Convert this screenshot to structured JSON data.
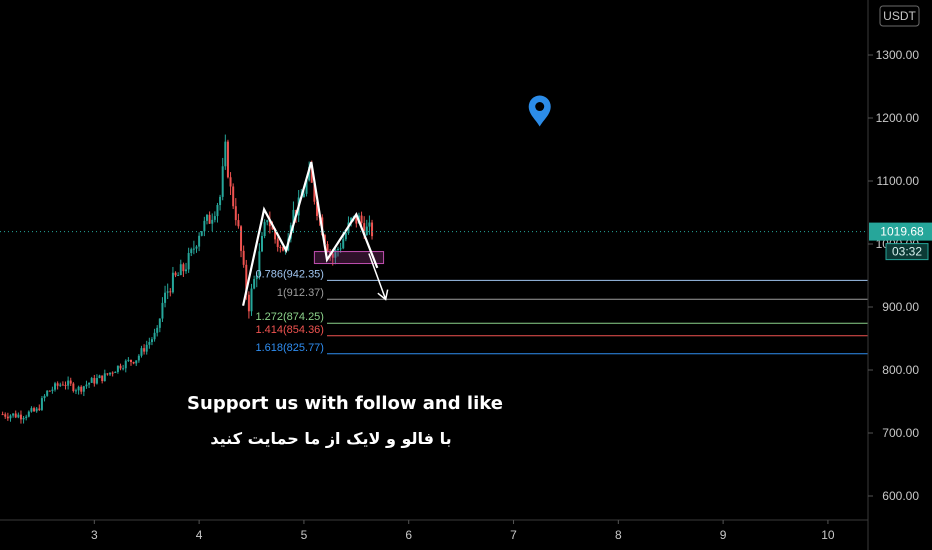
{
  "chart_data": {
    "type": "candlestick",
    "currency": "USDT",
    "x_ticks": [
      "3",
      "4",
      "5",
      "6",
      "7",
      "8",
      "9",
      "10"
    ],
    "y_ticks": [
      "600.00",
      "700.00",
      "800.00",
      "900.00",
      "1000.00",
      "1100.00",
      "1200.00",
      "1300.00"
    ],
    "ylim": [
      550,
      1370
    ],
    "xlim": [
      2.1,
      10.4
    ],
    "last_price": {
      "label": "1019.68",
      "value": 1019.68,
      "countdown": "03:32"
    },
    "price_path": [
      [
        2.1,
        730
      ],
      [
        2.3,
        728
      ],
      [
        2.45,
        735
      ],
      [
        2.55,
        765
      ],
      [
        2.7,
        780
      ],
      [
        2.85,
        770
      ],
      [
        2.95,
        780
      ],
      [
        3.1,
        790
      ],
      [
        3.25,
        808
      ],
      [
        3.4,
        818
      ],
      [
        3.5,
        840
      ],
      [
        3.6,
        860
      ],
      [
        3.65,
        905
      ],
      [
        3.72,
        935
      ],
      [
        3.8,
        950
      ],
      [
        3.85,
        960
      ],
      [
        3.92,
        980
      ],
      [
        4.0,
        1020
      ],
      [
        4.1,
        1040
      ],
      [
        4.2,
        1075
      ],
      [
        4.25,
        1150
      ],
      [
        4.3,
        1085
      ],
      [
        4.36,
        1040
      ],
      [
        4.42,
        960
      ],
      [
        4.47,
        900
      ],
      [
        4.55,
        960
      ],
      [
        4.65,
        1045
      ],
      [
        4.72,
        1010
      ],
      [
        4.8,
        985
      ],
      [
        4.88,
        1045
      ],
      [
        4.95,
        1060
      ],
      [
        5.05,
        1110
      ],
      [
        5.12,
        1060
      ],
      [
        5.2,
        1010
      ],
      [
        5.27,
        978
      ],
      [
        5.35,
        1000
      ],
      [
        5.45,
        1035
      ],
      [
        5.52,
        1040
      ],
      [
        5.6,
        1022
      ],
      [
        5.66,
        1019.68
      ]
    ],
    "pattern_path": [
      [
        4.42,
        902
      ],
      [
        4.62,
        1055
      ],
      [
        4.83,
        990
      ],
      [
        5.07,
        1130
      ],
      [
        5.22,
        975
      ],
      [
        5.5,
        1047
      ],
      [
        5.7,
        962
      ]
    ],
    "projection_arrow": {
      "from": [
        5.62,
        985
      ],
      "to": [
        5.78,
        912
      ]
    },
    "zone": {
      "x_range": [
        5.1,
        5.76
      ],
      "y_range": [
        969,
        988
      ]
    },
    "fib_levels": [
      {
        "label": "0.786(942.35)",
        "value": 942.35,
        "color": "#9fc4ef"
      },
      {
        "label": "1(912.37)",
        "value": 912.37,
        "color": "#9e9e9e"
      },
      {
        "label": "1.272(874.25)",
        "value": 874.25,
        "color": "#8bd18a"
      },
      {
        "label": "1.414(854.36)",
        "value": 854.36,
        "color": "#ef5350"
      },
      {
        "label": "1.618(825.77)",
        "value": 825.77,
        "color": "#2f8df0"
      }
    ],
    "fib_x_start": 5.22,
    "marker": {
      "x": 7.25,
      "y": 1215,
      "color": "#2c8ce8"
    },
    "annotations": {
      "english": "Support us with follow and like",
      "persian": "با فالو و لایک  از ما حمایت کنید"
    },
    "colors": {
      "up": "#26a69a",
      "down": "#ef5350",
      "pattern": "#ffffff",
      "last_price": "#26a69a"
    }
  }
}
